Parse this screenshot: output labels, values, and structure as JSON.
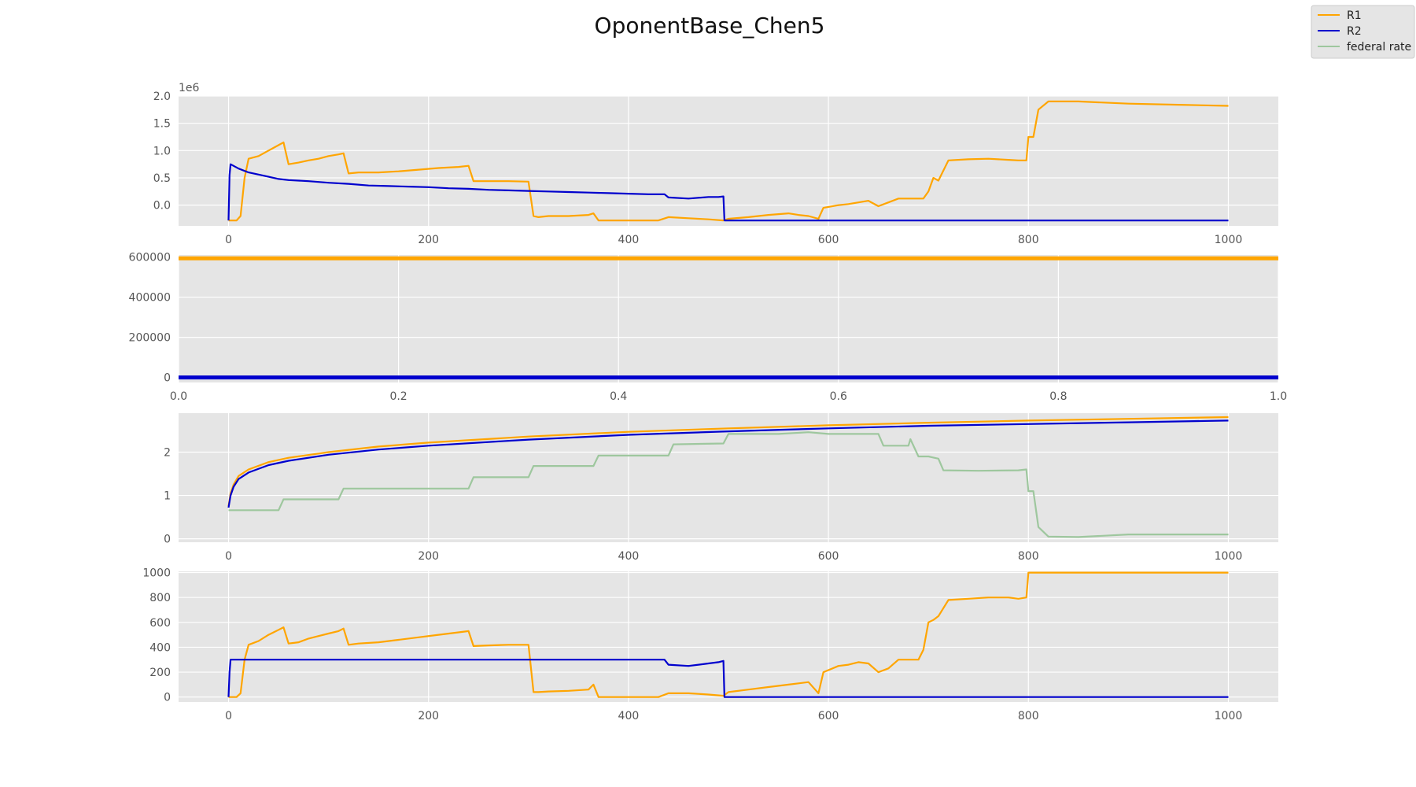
{
  "figure": {
    "title": "OponentBase_Chen5",
    "legend": [
      {
        "label": "R1",
        "color": "#ffa500"
      },
      {
        "label": "R2",
        "color": "#0000cd"
      },
      {
        "label": "federal rate",
        "color": "#9ec79e"
      }
    ]
  },
  "chart_data": [
    {
      "type": "line",
      "panel": 1,
      "xlim": [
        -50,
        1050
      ],
      "ylim": [
        -0.38,
        2.0
      ],
      "y_scale_label": "1e6",
      "grid": true,
      "xticks": [
        0,
        200,
        400,
        600,
        800,
        1000
      ],
      "yticks": [
        0.0,
        0.5,
        1.0,
        1.5,
        2.0
      ],
      "xtick_labels": [
        "0",
        "200",
        "400",
        "600",
        "800",
        "1000"
      ],
      "ytick_labels": [
        "0.0",
        "0.5",
        "1.0",
        "1.5",
        "2.0"
      ],
      "series": [
        {
          "name": "R1",
          "color": "#ffa500",
          "x": [
            0,
            8,
            12,
            16,
            20,
            30,
            40,
            45,
            50,
            55,
            60,
            70,
            80,
            90,
            100,
            110,
            115,
            120,
            130,
            150,
            170,
            190,
            210,
            230,
            240,
            245,
            260,
            280,
            300,
            305,
            310,
            320,
            340,
            360,
            365,
            370,
            400,
            430,
            440,
            460,
            480,
            495,
            500,
            520,
            540,
            560,
            570,
            580,
            590,
            595,
            610,
            620,
            630,
            640,
            650,
            660,
            670,
            680,
            690,
            695,
            700,
            705,
            710,
            720,
            740,
            760,
            780,
            790,
            798,
            800,
            805,
            810,
            820,
            850,
            900,
            950,
            1000
          ],
          "y": [
            -0.28,
            -0.28,
            -0.2,
            0.5,
            0.85,
            0.9,
            1.0,
            1.05,
            1.1,
            1.15,
            0.75,
            0.78,
            0.82,
            0.85,
            0.9,
            0.93,
            0.95,
            0.58,
            0.6,
            0.6,
            0.62,
            0.65,
            0.68,
            0.7,
            0.72,
            0.44,
            0.44,
            0.44,
            0.43,
            -0.2,
            -0.22,
            -0.2,
            -0.2,
            -0.18,
            -0.15,
            -0.28,
            -0.28,
            -0.28,
            -0.22,
            -0.24,
            -0.26,
            -0.28,
            -0.25,
            -0.22,
            -0.18,
            -0.15,
            -0.18,
            -0.2,
            -0.25,
            -0.05,
            0.0,
            0.02,
            0.05,
            0.08,
            -0.02,
            0.05,
            0.12,
            0.12,
            0.12,
            0.12,
            0.25,
            0.5,
            0.45,
            0.82,
            0.84,
            0.85,
            0.83,
            0.82,
            0.82,
            1.25,
            1.25,
            1.75,
            1.9,
            1.9,
            1.86,
            1.84,
            1.82
          ]
        },
        {
          "name": "R2",
          "color": "#0000cd",
          "x": [
            0,
            1,
            2,
            10,
            20,
            30,
            40,
            50,
            60,
            80,
            100,
            120,
            140,
            160,
            180,
            200,
            220,
            240,
            260,
            280,
            300,
            320,
            340,
            360,
            380,
            400,
            420,
            436,
            440,
            460,
            480,
            490,
            495,
            496,
            500,
            600,
            700,
            800,
            900,
            1000
          ],
          "y": [
            -0.28,
            0.55,
            0.75,
            0.67,
            0.6,
            0.56,
            0.52,
            0.48,
            0.46,
            0.44,
            0.41,
            0.39,
            0.36,
            0.35,
            0.34,
            0.33,
            0.31,
            0.3,
            0.28,
            0.27,
            0.26,
            0.25,
            0.24,
            0.23,
            0.22,
            0.21,
            0.2,
            0.2,
            0.14,
            0.12,
            0.15,
            0.15,
            0.16,
            -0.28,
            -0.28,
            -0.28,
            -0.28,
            -0.28,
            -0.28,
            -0.28
          ]
        }
      ]
    },
    {
      "type": "line",
      "panel": 2,
      "xlim": [
        0.0,
        1.0
      ],
      "ylim": [
        -25000,
        610000
      ],
      "grid": true,
      "xticks": [
        0.0,
        0.2,
        0.4,
        0.6,
        0.8,
        1.0
      ],
      "yticks": [
        0,
        200000,
        400000,
        600000
      ],
      "xtick_labels": [
        "0.0",
        "0.2",
        "0.4",
        "0.6",
        "0.8",
        "1.0"
      ],
      "ytick_labels": [
        "0",
        "200000",
        "400000",
        "600000"
      ],
      "series": [
        {
          "name": "R1",
          "color": "#ffa500",
          "x": [
            0.0,
            1.0
          ],
          "y": [
            593000,
            593000
          ]
        },
        {
          "name": "R2",
          "color": "#0000cd",
          "x": [
            0.0,
            1.0
          ],
          "y": [
            0,
            0
          ]
        }
      ]
    },
    {
      "type": "line",
      "panel": 3,
      "xlim": [
        -50,
        1050
      ],
      "ylim": [
        -0.08,
        2.9
      ],
      "grid": true,
      "xticks": [
        0,
        200,
        400,
        600,
        800,
        1000
      ],
      "yticks": [
        0,
        1,
        2
      ],
      "xtick_labels": [
        "0",
        "200",
        "400",
        "600",
        "800",
        "1000"
      ],
      "ytick_labels": [
        "0",
        "1",
        "2"
      ],
      "series": [
        {
          "name": "R1",
          "color": "#ffa500",
          "x": [
            0,
            2,
            5,
            10,
            20,
            40,
            60,
            100,
            150,
            200,
            300,
            400,
            500,
            600,
            700,
            800,
            900,
            1000
          ],
          "y": [
            0.75,
            1.05,
            1.25,
            1.45,
            1.6,
            1.77,
            1.87,
            2.0,
            2.13,
            2.22,
            2.36,
            2.47,
            2.55,
            2.62,
            2.68,
            2.73,
            2.77,
            2.81
          ]
        },
        {
          "name": "R2",
          "color": "#0000cd",
          "x": [
            0,
            2,
            5,
            10,
            20,
            40,
            60,
            100,
            150,
            200,
            300,
            400,
            500,
            600,
            700,
            800,
            900,
            1000
          ],
          "y": [
            0.72,
            1.0,
            1.2,
            1.38,
            1.53,
            1.7,
            1.8,
            1.94,
            2.06,
            2.15,
            2.29,
            2.4,
            2.48,
            2.55,
            2.61,
            2.65,
            2.69,
            2.73
          ]
        },
        {
          "name": "federal rate",
          "color": "#9ec79e",
          "x": [
            0,
            20,
            30,
            50,
            55,
            100,
            110,
            115,
            150,
            200,
            240,
            245,
            300,
            305,
            365,
            370,
            440,
            445,
            495,
            500,
            550,
            580,
            600,
            640,
            650,
            655,
            680,
            682,
            690,
            700,
            710,
            715,
            750,
            790,
            798,
            800,
            805,
            810,
            820,
            850,
            900,
            1000
          ],
          "y": [
            0.66,
            0.66,
            0.66,
            0.66,
            0.91,
            0.91,
            0.91,
            1.16,
            1.16,
            1.16,
            1.16,
            1.42,
            1.42,
            1.68,
            1.68,
            1.92,
            1.92,
            2.18,
            2.2,
            2.42,
            2.42,
            2.46,
            2.42,
            2.42,
            2.42,
            2.15,
            2.15,
            2.3,
            1.9,
            1.9,
            1.85,
            1.58,
            1.57,
            1.58,
            1.6,
            1.1,
            1.1,
            0.27,
            0.05,
            0.04,
            0.1,
            0.1
          ]
        }
      ]
    },
    {
      "type": "line",
      "panel": 4,
      "xlim": [
        -50,
        1050
      ],
      "ylim": [
        -40,
        1010
      ],
      "grid": true,
      "xticks": [
        0,
        200,
        400,
        600,
        800,
        1000
      ],
      "yticks": [
        0,
        200,
        400,
        600,
        800,
        1000
      ],
      "xtick_labels": [
        "0",
        "200",
        "400",
        "600",
        "800",
        "1000"
      ],
      "ytick_labels": [
        "0",
        "200",
        "400",
        "600",
        "800",
        "1000"
      ],
      "series": [
        {
          "name": "R1",
          "color": "#ffa500",
          "x": [
            0,
            8,
            12,
            16,
            20,
            30,
            40,
            45,
            50,
            55,
            60,
            70,
            80,
            90,
            100,
            110,
            115,
            120,
            130,
            150,
            170,
            190,
            210,
            230,
            240,
            245,
            260,
            280,
            300,
            305,
            310,
            320,
            340,
            360,
            365,
            370,
            400,
            430,
            440,
            460,
            480,
            495,
            500,
            520,
            540,
            560,
            570,
            580,
            590,
            595,
            610,
            620,
            630,
            640,
            650,
            660,
            670,
            680,
            690,
            695,
            700,
            705,
            710,
            720,
            740,
            760,
            780,
            790,
            798,
            800,
            850,
            900,
            950,
            1000
          ],
          "y": [
            0,
            0,
            30,
            300,
            420,
            450,
            500,
            520,
            540,
            560,
            430,
            440,
            470,
            490,
            510,
            530,
            550,
            420,
            430,
            440,
            460,
            480,
            500,
            520,
            530,
            410,
            415,
            420,
            420,
            40,
            40,
            45,
            50,
            60,
            100,
            0,
            0,
            0,
            30,
            30,
            20,
            10,
            40,
            60,
            80,
            100,
            110,
            120,
            30,
            200,
            250,
            260,
            280,
            270,
            200,
            230,
            300,
            300,
            300,
            380,
            600,
            620,
            650,
            780,
            790,
            800,
            800,
            790,
            800,
            1000,
            1000,
            1000,
            1000,
            1000
          ]
        },
        {
          "name": "R2",
          "color": "#0000cd",
          "x": [
            0,
            1,
            2,
            100,
            200,
            300,
            400,
            436,
            440,
            460,
            480,
            490,
            495,
            496,
            500,
            600,
            700,
            800,
            900,
            1000
          ],
          "y": [
            0,
            200,
            300,
            300,
            300,
            300,
            300,
            300,
            260,
            250,
            270,
            280,
            290,
            0,
            0,
            0,
            0,
            0,
            0,
            0
          ]
        }
      ]
    }
  ]
}
